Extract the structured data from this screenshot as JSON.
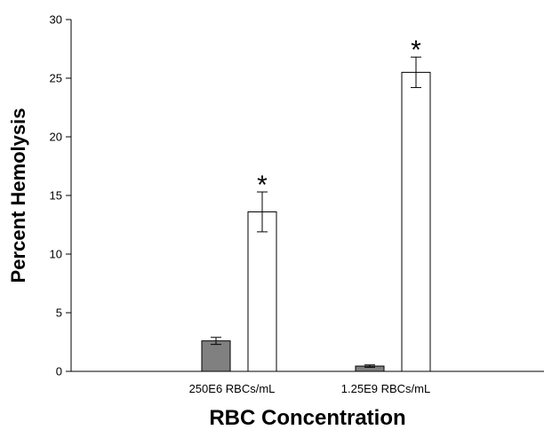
{
  "chart_data": {
    "type": "bar",
    "title": "",
    "xlabel": "RBC Concentration",
    "ylabel": "Percent Hemolysis",
    "ylim": [
      0,
      30
    ],
    "yticks": [
      "0",
      "5",
      "10",
      "15",
      "20",
      "25",
      "30"
    ],
    "categories": [
      "250E6 RBCs/mL",
      "1.25E9 RBCs/mL"
    ],
    "grid": false,
    "legend": "none",
    "series": [
      {
        "color": "#808080",
        "values": [
          2.6,
          0.45
        ],
        "errors": [
          0.3,
          0.1
        ]
      },
      {
        "color": "#ffffff",
        "values": [
          13.6,
          25.5
        ],
        "errors": [
          1.7,
          1.3
        ]
      }
    ],
    "annotations": [
      {
        "text": "*",
        "category": 0,
        "series": 1
      },
      {
        "text": "*",
        "category": 1,
        "series": 1
      }
    ]
  }
}
